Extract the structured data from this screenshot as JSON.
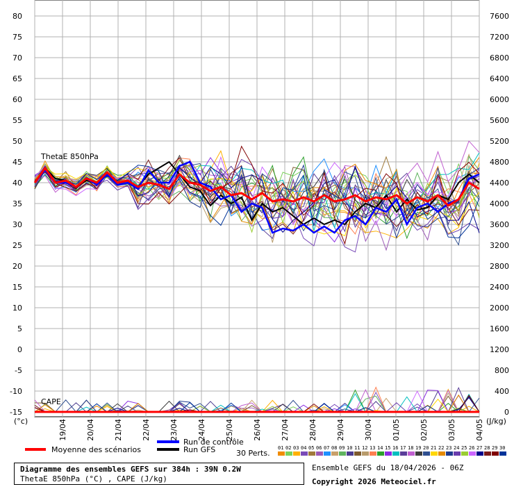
{
  "chart_data": {
    "type": "line",
    "title": "Diagramme des ensembles GEFS sur 384h : 39N 0.2W",
    "subtitle": "ThetaE 850hPa (°C) , CAPE (J/kg)",
    "left_axis": {
      "unit": "(°c)",
      "ticks": [
        80,
        75,
        70,
        65,
        60,
        55,
        50,
        45,
        40,
        35,
        30,
        25,
        20,
        15,
        10,
        5,
        0,
        -5,
        -10,
        -15
      ],
      "ylim": [
        -15,
        80
      ]
    },
    "right_axis": {
      "unit": "(J/kg)",
      "ticks": [
        7600,
        7200,
        6800,
        6400,
        6000,
        5600,
        5200,
        4800,
        4400,
        4000,
        3600,
        3200,
        2800,
        2400,
        2000,
        1600,
        1200,
        800,
        400,
        0
      ]
    },
    "x_labels": [
      "19/04",
      "20/04",
      "21/04",
      "22/04",
      "23/04",
      "24/04",
      "25/04",
      "26/04",
      "27/04",
      "28/04",
      "29/04",
      "30/04",
      "01/05",
      "02/05",
      "03/05",
      "04/05"
    ],
    "panel_labels": {
      "thetae": "ThetaE 850hPa",
      "cape": "CAPE"
    },
    "mean_thetae": [
      40,
      43.5,
      40,
      40.5,
      39,
      41,
      40,
      42.5,
      40,
      40.5,
      39,
      40,
      39.5,
      38.5,
      42,
      40,
      39.5,
      38,
      39,
      37,
      37.5,
      36,
      37.5,
      35.5,
      36,
      35.5,
      36.5,
      35.5,
      37,
      35.5,
      36,
      37,
      35.5,
      36.5,
      36,
      37,
      35,
      36.5,
      35.5,
      37,
      34.5,
      36,
      40,
      38.5
    ],
    "control_thetae": [
      40,
      43,
      40,
      40,
      39,
      41,
      39.5,
      42,
      39.5,
      40,
      38.5,
      43,
      40,
      40,
      44,
      45,
      40,
      39,
      36,
      37,
      33,
      35,
      34,
      28,
      29,
      28.5,
      30,
      28,
      29.5,
      28,
      31,
      32,
      30,
      34,
      33,
      36,
      30,
      34,
      35,
      33,
      35,
      36,
      41,
      42
    ],
    "gfs_thetae": [
      40,
      43.5,
      41,
      40.5,
      39,
      40.5,
      40,
      42,
      40,
      40.5,
      39,
      42,
      43.5,
      45,
      42,
      39,
      38,
      34.5,
      37,
      35,
      36.5,
      31,
      35,
      33,
      34,
      32,
      30,
      31.5,
      30,
      31,
      30,
      33,
      35,
      34,
      37,
      33,
      36,
      33.5,
      34,
      37,
      36,
      40,
      42,
      40
    ],
    "cape_spike_hint": "low CAPE values, peaks around 27/04 and 01/05-04/05",
    "legend": {
      "mean": "Moyenne des scénarios",
      "control": "Run de contrôle",
      "gfs": "Run GFS",
      "perts_label": "30 Perts.",
      "pert_numbers": [
        "01",
        "02",
        "03",
        "04",
        "05",
        "06",
        "07",
        "08",
        "09",
        "10",
        "11",
        "12",
        "13",
        "14",
        "15",
        "16",
        "17",
        "18",
        "19",
        "20",
        "21",
        "22",
        "23",
        "24",
        "25",
        "26",
        "27",
        "28",
        "29",
        "30"
      ],
      "pert_colors": [
        "#f08c00",
        "#7ad15a",
        "#ffb000",
        "#7a4bb8",
        "#a07a3b",
        "#9b59b6",
        "#1e90ff",
        "#c8a06b",
        "#5fb35f",
        "#4b3b8f",
        "#7d5a2e",
        "#b89b6b",
        "#ff7f50",
        "#2ca02c",
        "#8a2be2",
        "#00bfbf",
        "#5a3e99",
        "#c060d0",
        "#3c3c3c",
        "#2f4f8f",
        "#ffd700",
        "#e68a00",
        "#1e3a8f",
        "#6a3dad",
        "#9acd32",
        "#cc66ff",
        "#00008b",
        "#7a1a1a",
        "#800000",
        "#003399"
      ]
    },
    "colors": {
      "mean": "#ff0000",
      "control": "#0000ff",
      "gfs": "#000000",
      "grid": "#b0b0b0"
    }
  },
  "footer": {
    "box_title": "Diagramme des ensembles GEFS sur 384h : 39N 0.2W",
    "box_sub": "ThetaE 850hPa (°C) , CAPE (J/kg)",
    "run": "Ensemble GEFS du 18/04/2026 - 06Z",
    "copyright": "Copyright 2026 Meteociel.fr"
  }
}
